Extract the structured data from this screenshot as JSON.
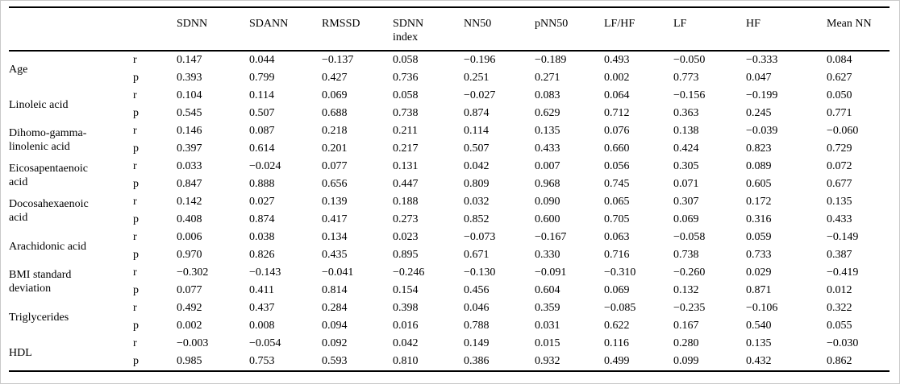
{
  "table": {
    "stat_labels": [
      "r",
      "p"
    ],
    "columns": [
      "SDNN",
      "SDANN",
      "RMSSD",
      "SDNN\nindex",
      "NN50",
      "pNN50",
      "LF/HF",
      "LF",
      "HF",
      "Mean NN"
    ],
    "row_groups": [
      {
        "label": "Age",
        "r": [
          "0.147",
          "0.044",
          "−0.137",
          "0.058",
          "−0.196",
          "−0.189",
          "0.493",
          "−0.050",
          "−0.333",
          "0.084"
        ],
        "p": [
          "0.393",
          "0.799",
          "0.427",
          "0.736",
          "0.251",
          "0.271",
          "0.002",
          "0.773",
          "0.047",
          "0.627"
        ]
      },
      {
        "label": "Linoleic acid",
        "r": [
          "0.104",
          "0.114",
          "0.069",
          "0.058",
          "−0.027",
          "0.083",
          "0.064",
          "−0.156",
          "−0.199",
          "0.050"
        ],
        "p": [
          "0.545",
          "0.507",
          "0.688",
          "0.738",
          "0.874",
          "0.629",
          "0.712",
          "0.363",
          "0.245",
          "0.771"
        ]
      },
      {
        "label": "Dihomo-gamma-linolenic acid",
        "r": [
          "0.146",
          "0.087",
          "0.218",
          "0.211",
          "0.114",
          "0.135",
          "0.076",
          "0.138",
          "−0.039",
          "−0.060"
        ],
        "p": [
          "0.397",
          "0.614",
          "0.201",
          "0.217",
          "0.507",
          "0.433",
          "0.660",
          "0.424",
          "0.823",
          "0.729"
        ]
      },
      {
        "label": "Eicosapentaenoic acid",
        "r": [
          "0.033",
          "−0.024",
          "0.077",
          "0.131",
          "0.042",
          "0.007",
          "0.056",
          "0.305",
          "0.089",
          "0.072"
        ],
        "p": [
          "0.847",
          "0.888",
          "0.656",
          "0.447",
          "0.809",
          "0.968",
          "0.745",
          "0.071",
          "0.605",
          "0.677"
        ]
      },
      {
        "label": "Docosahexaenoic acid",
        "r": [
          "0.142",
          "0.027",
          "0.139",
          "0.188",
          "0.032",
          "0.090",
          "0.065",
          "0.307",
          "0.172",
          "0.135"
        ],
        "p": [
          "0.408",
          "0.874",
          "0.417",
          "0.273",
          "0.852",
          "0.600",
          "0.705",
          "0.069",
          "0.316",
          "0.433"
        ]
      },
      {
        "label": "Arachidonic acid",
        "r": [
          "0.006",
          "0.038",
          "0.134",
          "0.023",
          "−0.073",
          "−0.167",
          "0.063",
          "−0.058",
          "0.059",
          "−0.149"
        ],
        "p": [
          "0.970",
          "0.826",
          "0.435",
          "0.895",
          "0.671",
          "0.330",
          "0.716",
          "0.738",
          "0.733",
          "0.387"
        ]
      },
      {
        "label": "BMI standard deviation",
        "r": [
          "−0.302",
          "−0.143",
          "−0.041",
          "−0.246",
          "−0.130",
          "−0.091",
          "−0.310",
          "−0.260",
          "0.029",
          "−0.419"
        ],
        "p": [
          "0.077",
          "0.411",
          "0.814",
          "0.154",
          "0.456",
          "0.604",
          "0.069",
          "0.132",
          "0.871",
          "0.012"
        ]
      },
      {
        "label": "Triglycerides",
        "r": [
          "0.492",
          "0.437",
          "0.284",
          "0.398",
          "0.046",
          "0.359",
          "−0.085",
          "−0.235",
          "−0.106",
          "0.322"
        ],
        "p": [
          "0.002",
          "0.008",
          "0.094",
          "0.016",
          "0.788",
          "0.031",
          "0.622",
          "0.167",
          "0.540",
          "0.055"
        ]
      },
      {
        "label": "HDL",
        "r": [
          "−0.003",
          "−0.054",
          "0.092",
          "0.042",
          "0.149",
          "0.015",
          "0.116",
          "0.280",
          "0.135",
          "−0.030"
        ],
        "p": [
          "0.985",
          "0.753",
          "0.593",
          "0.810",
          "0.386",
          "0.932",
          "0.499",
          "0.099",
          "0.432",
          "0.862"
        ]
      }
    ]
  }
}
